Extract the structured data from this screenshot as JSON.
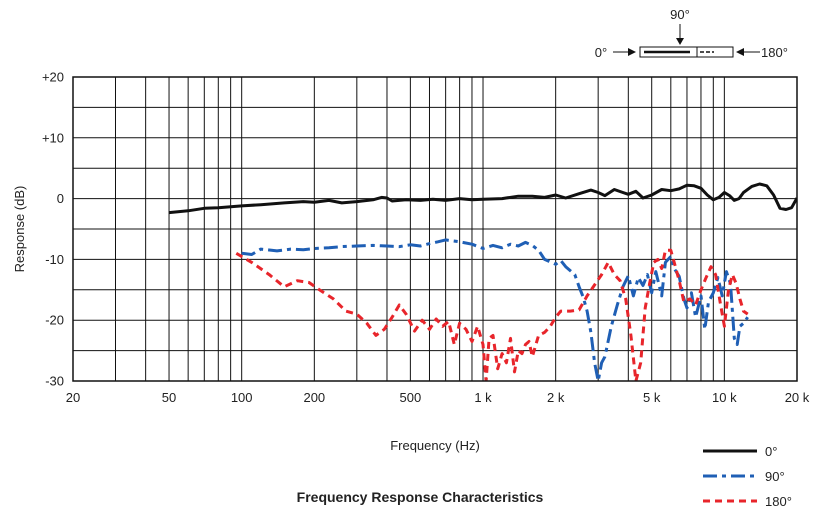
{
  "chart_data": {
    "type": "line",
    "title": "Frequency Response Characteristics",
    "xlabel": "Frequency (Hz)",
    "ylabel": "Response (dB)",
    "x_scale": "log",
    "xlim": [
      20,
      20000
    ],
    "ylim": [
      -30,
      20
    ],
    "x_ticks": [
      {
        "value": 20,
        "label": "20"
      },
      {
        "value": 50,
        "label": "50"
      },
      {
        "value": 100,
        "label": "100"
      },
      {
        "value": 200,
        "label": "200"
      },
      {
        "value": 500,
        "label": "500"
      },
      {
        "value": 1000,
        "label": "1 k"
      },
      {
        "value": 2000,
        "label": "2 k"
      },
      {
        "value": 5000,
        "label": "5 k"
      },
      {
        "value": 10000,
        "label": "10 k"
      },
      {
        "value": 20000,
        "label": "20 k"
      }
    ],
    "y_ticks": [
      {
        "value": 20,
        "label": "+20"
      },
      {
        "value": 10,
        "label": "+10"
      },
      {
        "value": 0,
        "label": "0"
      },
      {
        "value": -10,
        "label": "-10"
      },
      {
        "value": -20,
        "label": "-20"
      },
      {
        "value": -30,
        "label": "-30"
      }
    ],
    "grid": true,
    "legend_position": "bottom-right",
    "series": [
      {
        "name": "0°",
        "color": "#111111",
        "dash": "solid",
        "points": [
          [
            50,
            -2.3
          ],
          [
            60,
            -2
          ],
          [
            70,
            -1.6
          ],
          [
            80,
            -1.5
          ],
          [
            100,
            -1.2
          ],
          [
            120,
            -1
          ],
          [
            150,
            -0.7
          ],
          [
            180,
            -0.5
          ],
          [
            200,
            -0.6
          ],
          [
            230,
            -0.3
          ],
          [
            260,
            -0.7
          ],
          [
            300,
            -0.5
          ],
          [
            350,
            -0.2
          ],
          [
            380,
            0.2
          ],
          [
            400,
            0.1
          ],
          [
            420,
            -0.4
          ],
          [
            480,
            -0.2
          ],
          [
            550,
            -0.3
          ],
          [
            620,
            -0.1
          ],
          [
            700,
            -0.3
          ],
          [
            800,
            0
          ],
          [
            900,
            -0.2
          ],
          [
            1000,
            -0.1
          ],
          [
            1200,
            0
          ],
          [
            1400,
            0.4
          ],
          [
            1600,
            0.4
          ],
          [
            1800,
            0.2
          ],
          [
            2000,
            0.6
          ],
          [
            2200,
            0.1
          ],
          [
            2500,
            0.8
          ],
          [
            2800,
            1.4
          ],
          [
            3000,
            1
          ],
          [
            3200,
            0.5
          ],
          [
            3500,
            1.5
          ],
          [
            3800,
            1
          ],
          [
            4000,
            0.7
          ],
          [
            4300,
            1.2
          ],
          [
            4600,
            0.1
          ],
          [
            5000,
            0.6
          ],
          [
            5500,
            1.5
          ],
          [
            6000,
            1.3
          ],
          [
            6500,
            1.6
          ],
          [
            7000,
            2.2
          ],
          [
            7500,
            2.1
          ],
          [
            8000,
            1.7
          ],
          [
            8500,
            0.6
          ],
          [
            9000,
            -0.2
          ],
          [
            9500,
            0.2
          ],
          [
            10000,
            1
          ],
          [
            10500,
            0.5
          ],
          [
            11000,
            -0.3
          ],
          [
            11500,
            0
          ],
          [
            12000,
            1
          ],
          [
            13000,
            2
          ],
          [
            14000,
            2.4
          ],
          [
            15000,
            2.1
          ],
          [
            16000,
            0.6
          ],
          [
            17000,
            -1.6
          ],
          [
            18000,
            -1.8
          ],
          [
            19000,
            -1.5
          ],
          [
            20000,
            0.1
          ]
        ]
      },
      {
        "name": "90°",
        "color": "#1f5fb5",
        "dash": "longdash",
        "points": [
          [
            100,
            -9
          ],
          [
            110,
            -9.2
          ],
          [
            120,
            -8.3
          ],
          [
            140,
            -8.6
          ],
          [
            160,
            -8.3
          ],
          [
            180,
            -8.4
          ],
          [
            200,
            -8.2
          ],
          [
            230,
            -8.1
          ],
          [
            260,
            -7.9
          ],
          [
            300,
            -7.8
          ],
          [
            350,
            -7.7
          ],
          [
            400,
            -7.8
          ],
          [
            450,
            -7.9
          ],
          [
            500,
            -7.6
          ],
          [
            550,
            -7.8
          ],
          [
            600,
            -7.4
          ],
          [
            650,
            -7.1
          ],
          [
            700,
            -6.8
          ],
          [
            800,
            -7.1
          ],
          [
            900,
            -7.5
          ],
          [
            1000,
            -8.2
          ],
          [
            1100,
            -7.7
          ],
          [
            1200,
            -8.1
          ],
          [
            1300,
            -7.5
          ],
          [
            1400,
            -7.8
          ],
          [
            1500,
            -7.2
          ],
          [
            1600,
            -7.7
          ],
          [
            1700,
            -8.5
          ],
          [
            1800,
            -10
          ],
          [
            2000,
            -10.8
          ],
          [
            2100,
            -10.2
          ],
          [
            2200,
            -11.2
          ],
          [
            2400,
            -12.5
          ],
          [
            2500,
            -14.5
          ],
          [
            2600,
            -16.2
          ],
          [
            2700,
            -18.5
          ],
          [
            2800,
            -22
          ],
          [
            2900,
            -27
          ],
          [
            3000,
            -30
          ],
          [
            3100,
            -27
          ],
          [
            3200,
            -26
          ],
          [
            3400,
            -21
          ],
          [
            3600,
            -17.5
          ],
          [
            3800,
            -14.5
          ],
          [
            4000,
            -12.7
          ],
          [
            4200,
            -16
          ],
          [
            4400,
            -13
          ],
          [
            4600,
            -14.3
          ],
          [
            4800,
            -12.5
          ],
          [
            5000,
            -15.5
          ],
          [
            5200,
            -12
          ],
          [
            5500,
            -16
          ],
          [
            5700,
            -10.5
          ],
          [
            6000,
            -9.5
          ],
          [
            6200,
            -11.5
          ],
          [
            6500,
            -12.8
          ],
          [
            6800,
            -16.5
          ],
          [
            7000,
            -18
          ],
          [
            7300,
            -15.5
          ],
          [
            7600,
            -19.5
          ],
          [
            8000,
            -16
          ],
          [
            8300,
            -21.5
          ],
          [
            8600,
            -17
          ],
          [
            9000,
            -15.5
          ],
          [
            9400,
            -13
          ],
          [
            9800,
            -16
          ],
          [
            10200,
            -12
          ],
          [
            10600,
            -14
          ],
          [
            11000,
            -23
          ],
          [
            11300,
            -24
          ],
          [
            11600,
            -21
          ],
          [
            12000,
            -20.5
          ],
          [
            12500,
            -19.5
          ]
        ]
      },
      {
        "name": "180°",
        "color": "#e8252b",
        "dash": "dash",
        "points": [
          [
            95,
            -9
          ],
          [
            110,
            -10.5
          ],
          [
            130,
            -12.5
          ],
          [
            150,
            -14.5
          ],
          [
            170,
            -13.5
          ],
          [
            190,
            -13.8
          ],
          [
            210,
            -15
          ],
          [
            240,
            -16.5
          ],
          [
            270,
            -18.5
          ],
          [
            300,
            -19
          ],
          [
            330,
            -20.5
          ],
          [
            360,
            -22.5
          ],
          [
            390,
            -21.5
          ],
          [
            420,
            -19.5
          ],
          [
            450,
            -17.5
          ],
          [
            480,
            -19
          ],
          [
            520,
            -21.8
          ],
          [
            560,
            -20
          ],
          [
            600,
            -21.5
          ],
          [
            640,
            -19.8
          ],
          [
            680,
            -21
          ],
          [
            720,
            -20.2
          ],
          [
            760,
            -24
          ],
          [
            800,
            -20.5
          ],
          [
            850,
            -21.5
          ],
          [
            900,
            -23.5
          ],
          [
            950,
            -21
          ],
          [
            1000,
            -24
          ],
          [
            1030,
            -30
          ],
          [
            1060,
            -23
          ],
          [
            1100,
            -22.5
          ],
          [
            1150,
            -28
          ],
          [
            1200,
            -25.5
          ],
          [
            1250,
            -27
          ],
          [
            1300,
            -23
          ],
          [
            1350,
            -28.5
          ],
          [
            1400,
            -25
          ],
          [
            1450,
            -25.5
          ],
          [
            1500,
            -24
          ],
          [
            1550,
            -23.5
          ],
          [
            1600,
            -26
          ],
          [
            1700,
            -22.5
          ],
          [
            1800,
            -22
          ],
          [
            1900,
            -21
          ],
          [
            2000,
            -19.5
          ],
          [
            2100,
            -18.5
          ],
          [
            2300,
            -18.5
          ],
          [
            2500,
            -18.3
          ],
          [
            2700,
            -16
          ],
          [
            2900,
            -14.2
          ],
          [
            3100,
            -12.5
          ],
          [
            3300,
            -10.5
          ],
          [
            3500,
            -12.5
          ],
          [
            3700,
            -13.5
          ],
          [
            3900,
            -16.5
          ],
          [
            4100,
            -22.5
          ],
          [
            4300,
            -30
          ],
          [
            4500,
            -27
          ],
          [
            4700,
            -18
          ],
          [
            4900,
            -14
          ],
          [
            5100,
            -10.5
          ],
          [
            5300,
            -10
          ],
          [
            5500,
            -11.5
          ],
          [
            5700,
            -8.5
          ],
          [
            6000,
            -8.5
          ],
          [
            6200,
            -10.5
          ],
          [
            6500,
            -13.5
          ],
          [
            6800,
            -17
          ],
          [
            7200,
            -16.5
          ],
          [
            7600,
            -17.5
          ],
          [
            8000,
            -15
          ],
          [
            8400,
            -13
          ],
          [
            8800,
            -11.2
          ],
          [
            9200,
            -12.5
          ],
          [
            9600,
            -17
          ],
          [
            10000,
            -21
          ],
          [
            10400,
            -15
          ],
          [
            10800,
            -12.5
          ],
          [
            11200,
            -14
          ],
          [
            11600,
            -16.5
          ],
          [
            12000,
            -18.5
          ],
          [
            12500,
            -19
          ]
        ]
      }
    ]
  },
  "polar_diagram": {
    "label_top": "90°",
    "label_left": "0°",
    "label_right": "180°"
  }
}
